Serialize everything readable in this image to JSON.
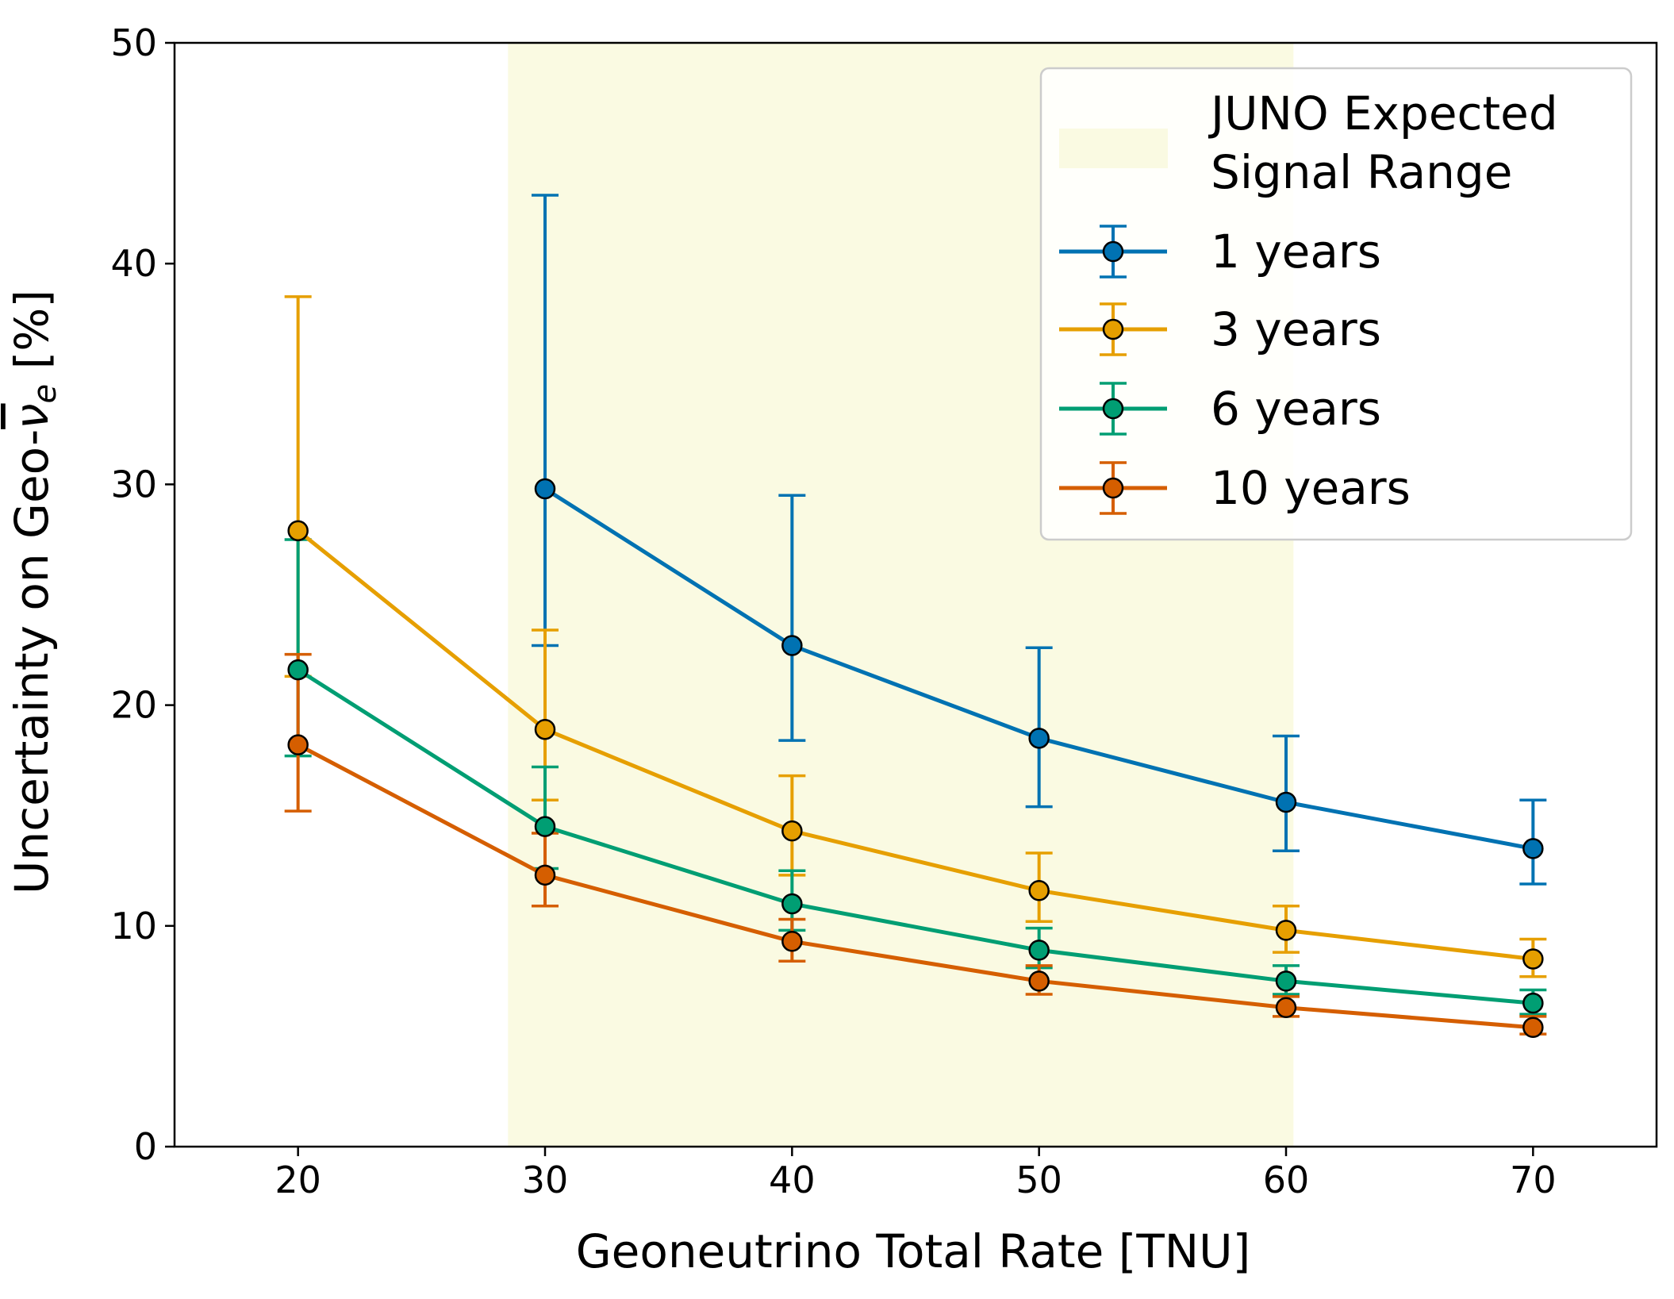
{
  "chart_data": {
    "type": "line",
    "xlabel": "Geoneutrino Total Rate [TNU]",
    "ylabel_prefix": "Uncertainty on Geo-",
    "ylabel_symbol": "ν",
    "ylabel_subscript": "e",
    "ylabel_suffix": " [%]",
    "xlim": [
      15,
      75
    ],
    "ylim": [
      0,
      50
    ],
    "xticks": [
      "20",
      "30",
      "40",
      "50",
      "60",
      "70"
    ],
    "yticks": [
      "0",
      "10",
      "20",
      "30",
      "40",
      "50"
    ],
    "grid": false,
    "legend_position": "top-right",
    "shaded_region": {
      "label_line1": "JUNO Expected",
      "label_line2": "Signal Range",
      "x_range": [
        28.5,
        60.3
      ],
      "color": "#fafae2"
    },
    "series": [
      {
        "name": "1 years",
        "color": "#0072b2",
        "x": [
          30,
          40,
          50,
          60,
          70
        ],
        "y": [
          29.8,
          22.7,
          18.5,
          15.6,
          13.5
        ],
        "err_low": [
          22.7,
          18.4,
          15.4,
          13.4,
          11.9
        ],
        "err_high": [
          43.1,
          29.5,
          22.6,
          18.6,
          15.7
        ]
      },
      {
        "name": "3 years",
        "color": "#e69f00",
        "x": [
          20,
          30,
          40,
          50,
          60,
          70
        ],
        "y": [
          27.9,
          18.9,
          14.3,
          11.6,
          9.8,
          8.5
        ],
        "err_low": [
          21.3,
          15.7,
          12.3,
          10.2,
          8.8,
          7.7
        ],
        "err_high": [
          38.5,
          23.4,
          16.8,
          13.3,
          10.9,
          9.4
        ]
      },
      {
        "name": "6 years",
        "color": "#009e73",
        "x": [
          20,
          30,
          40,
          50,
          60,
          70
        ],
        "y": [
          21.6,
          14.5,
          11.0,
          8.9,
          7.5,
          6.5
        ],
        "err_low": [
          17.7,
          12.6,
          9.8,
          8.1,
          6.9,
          6.0
        ],
        "err_high": [
          27.5,
          17.2,
          12.5,
          9.9,
          8.2,
          7.1
        ]
      },
      {
        "name": "10 years",
        "color": "#d55e00",
        "x": [
          20,
          30,
          40,
          50,
          60,
          70
        ],
        "y": [
          18.2,
          12.3,
          9.3,
          7.5,
          6.3,
          5.4
        ],
        "err_low": [
          15.2,
          10.9,
          8.4,
          6.9,
          5.9,
          5.1
        ],
        "err_high": [
          22.3,
          14.2,
          10.3,
          8.2,
          6.8,
          5.9
        ]
      }
    ]
  }
}
